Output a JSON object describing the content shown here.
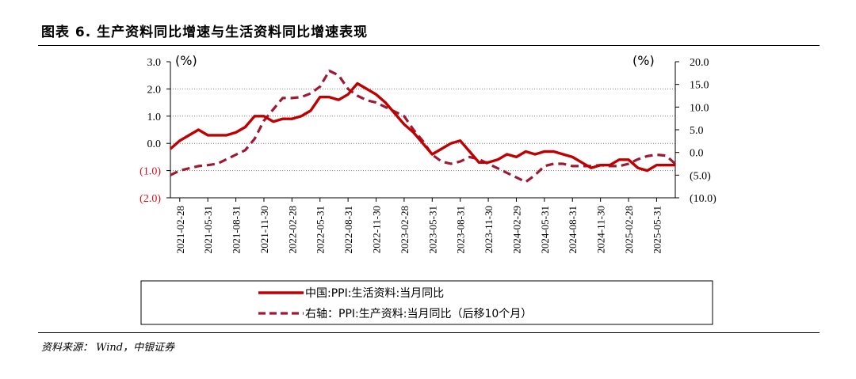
{
  "header": {
    "title": "图表 6. 生产资料同比增速与生活资料同比增速表现",
    "source": "资料来源： Wind，中银证券"
  },
  "chart_data": {
    "type": "line",
    "left_unit": "(%)",
    "right_unit": "(%)",
    "left_ylim": [
      -2.0,
      3.0
    ],
    "right_ylim": [
      -10.0,
      20.0
    ],
    "left_ticks": [
      "3.0",
      "2.0",
      "1.0",
      "0.0",
      "(1.0)",
      "(2.0)"
    ],
    "right_ticks": [
      "20.0",
      "15.0",
      "10.0",
      "5.0",
      "0.0",
      "(5.0)",
      "(10.0)"
    ],
    "grid": "horizontal dotted",
    "legend_position": "bottom",
    "x_ticks": [
      "2021-02-28",
      "2021-05-31",
      "2021-08-31",
      "2021-11-30",
      "2022-02-28",
      "2022-05-31",
      "2022-08-31",
      "2022-11-30",
      "2023-02-28",
      "2023-05-31",
      "2023-08-31",
      "2023-11-30",
      "2024-02-29",
      "2024-05-31",
      "2024-08-31",
      "2024-11-30",
      "2025-02-28",
      "2025-05-31"
    ],
    "x": [
      "2021-01",
      "2021-02",
      "2021-03",
      "2021-04",
      "2021-05",
      "2021-06",
      "2021-07",
      "2021-08",
      "2021-09",
      "2021-10",
      "2021-11",
      "2021-12",
      "2022-01",
      "2022-02",
      "2022-03",
      "2022-04",
      "2022-05",
      "2022-06",
      "2022-07",
      "2022-08",
      "2022-09",
      "2022-10",
      "2022-11",
      "2022-12",
      "2023-01",
      "2023-02",
      "2023-03",
      "2023-04",
      "2023-05",
      "2023-06",
      "2023-07",
      "2023-08",
      "2023-09",
      "2023-10",
      "2023-11",
      "2023-12",
      "2024-01",
      "2024-02",
      "2024-03",
      "2024-04",
      "2024-05",
      "2024-06",
      "2024-07",
      "2024-08",
      "2024-09",
      "2024-10",
      "2024-11",
      "2024-12",
      "2025-01",
      "2025-02",
      "2025-03",
      "2025-04",
      "2025-05",
      "2025-06",
      "2025-07"
    ],
    "series": [
      {
        "name": "中国:PPI:生活资料:当月同比",
        "axis": "left",
        "style": "solid",
        "color": "#c00000",
        "values": [
          -0.2,
          0.1,
          0.3,
          0.5,
          0.3,
          0.3,
          0.3,
          0.4,
          0.6,
          1.0,
          1.0,
          0.8,
          0.9,
          0.9,
          1.0,
          1.2,
          1.7,
          1.7,
          1.6,
          1.8,
          2.2,
          2.0,
          1.8,
          1.5,
          1.1,
          0.7,
          0.4,
          0.0,
          -0.4,
          -0.2,
          0.0,
          0.1,
          -0.3,
          -0.7,
          -0.7,
          -0.6,
          -0.4,
          -0.5,
          -0.3,
          -0.4,
          -0.3,
          -0.3,
          -0.4,
          -0.5,
          -0.7,
          -0.9,
          -0.8,
          -0.8,
          -0.6,
          -0.6,
          -0.9,
          -1.0,
          -0.8,
          -0.8,
          -0.8
        ]
      },
      {
        "name": "右轴：PPI:生产资料:当月同比（后移10个月）",
        "axis": "right",
        "style": "dashed",
        "color": "#9e1a33",
        "values": [
          -5.0,
          -4.0,
          -3.5,
          -3.0,
          -2.8,
          -2.5,
          -1.5,
          -0.5,
          0.5,
          3.0,
          7.0,
          9.5,
          12.0,
          12.0,
          12.2,
          13.0,
          14.5,
          18.0,
          17.0,
          14.0,
          12.5,
          11.5,
          11.0,
          10.0,
          9.0,
          8.0,
          5.0,
          2.5,
          -0.5,
          -2.0,
          -2.5,
          -2.0,
          -1.0,
          -1.5,
          -2.5,
          -3.5,
          -4.5,
          -5.5,
          -6.5,
          -5.0,
          -3.0,
          -2.5,
          -2.5,
          -3.0,
          -3.0,
          -3.0,
          -2.8,
          -3.0,
          -3.0,
          -2.5,
          -1.5,
          -0.8,
          -0.5,
          -0.7,
          -2.5
        ]
      }
    ]
  }
}
